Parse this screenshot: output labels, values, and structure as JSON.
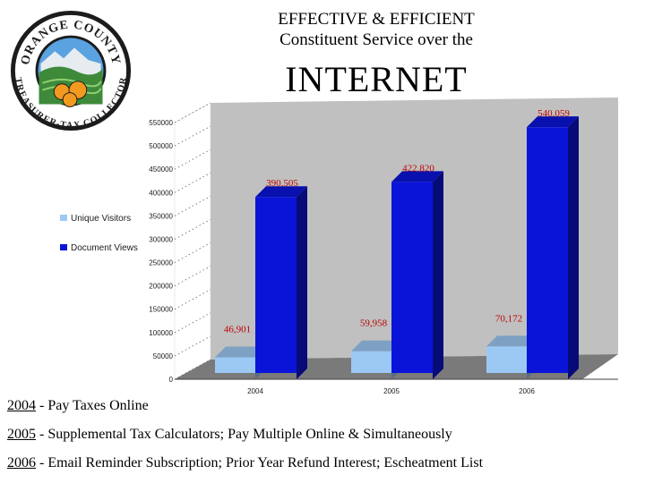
{
  "header": {
    "line1": "EFFECTIVE & EFFICIENT",
    "line2": "Constituent Service over the",
    "line3": "INTERNET"
  },
  "logo": {
    "top_text": "ORANGE COUNTY",
    "bottom_text": "TREASURER-TAX COLLECTOR",
    "colors": {
      "ring": "#1c1c1c",
      "sky": "#5aa2e0",
      "hills": "#3e8a3a",
      "orange": "#f29a1f"
    }
  },
  "chart_data": {
    "type": "bar",
    "categories": [
      "2004",
      "2005",
      "2006"
    ],
    "series": [
      {
        "name": "Unique Visitors",
        "values": [
          46901,
          59958,
          70172
        ],
        "labels": [
          "46,901",
          "59,958",
          "70,172"
        ],
        "color": "#9cc8f4"
      },
      {
        "name": "Document Views",
        "values": [
          390505,
          422820,
          540059
        ],
        "labels": [
          "390,505",
          "422,820",
          "540,059"
        ],
        "color": "#0a14d8"
      }
    ],
    "ylim": [
      0,
      550000
    ],
    "yticks": [
      "0",
      "50000",
      "100000",
      "150000",
      "200000",
      "250000",
      "300000",
      "350000",
      "400000",
      "450000",
      "500000",
      "550000"
    ],
    "legend_position": "left",
    "label_color": "#c00000",
    "background_wall": "#c0c0c0"
  },
  "notes": [
    {
      "year": "2004",
      "text": " - Pay Taxes Online"
    },
    {
      "year": "2005",
      "text": " - Supplemental Tax Calculators; Pay Multiple Online & Simultaneously"
    },
    {
      "year": "2006",
      "text": " - Email Reminder Subscription; Prior Year Refund Interest; Escheatment List"
    }
  ]
}
